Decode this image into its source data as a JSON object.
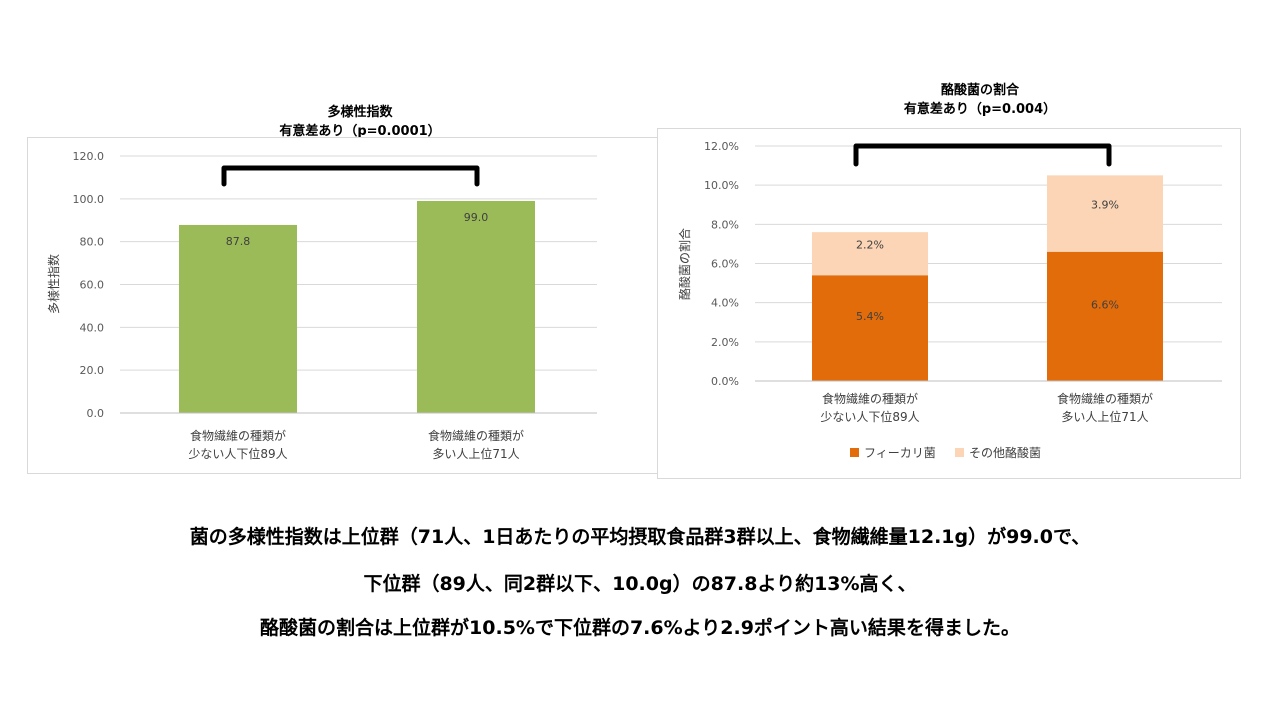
{
  "chart_data": [
    {
      "type": "bar",
      "title": "多様性指数",
      "subtitle": "有意差あり（p=0.0001）",
      "ylabel": "多様性指数",
      "xlabel": "",
      "ylim": [
        0,
        120
      ],
      "yticks": [
        "0.0",
        "20.0",
        "40.0",
        "60.0",
        "80.0",
        "100.0",
        "120.0"
      ],
      "categories": [
        [
          "食物繊維の種類が",
          "少ない人下位89人"
        ],
        [
          "食物繊維の種類が",
          "多い人上位71人"
        ]
      ],
      "series": [
        {
          "values": [
            87.8,
            99.0
          ],
          "labels": [
            "87.8",
            "99.0"
          ],
          "color": "#9bbb59"
        }
      ],
      "grid": true,
      "legend": "none",
      "annotation": "significance bracket between the two bars"
    },
    {
      "type": "bar",
      "stacked": true,
      "title": "酪酸菌の割合",
      "subtitle": "有意差あり（p=0.004）",
      "ylabel": "酪酸菌の割合",
      "xlabel": "",
      "ylim": [
        0,
        12
      ],
      "yticks": [
        "0.0%",
        "2.0%",
        "4.0%",
        "6.0%",
        "8.0%",
        "10.0%",
        "12.0%"
      ],
      "categories": [
        [
          "食物繊維の種類が",
          "少ない人下位89人"
        ],
        [
          "食物繊維の種類が",
          "多い人上位71人"
        ]
      ],
      "series": [
        {
          "name": "フィーカリ菌",
          "values": [
            5.4,
            6.6
          ],
          "labels": [
            "5.4%",
            "6.6%"
          ],
          "color": "#e36c0a"
        },
        {
          "name": "その他酪酸菌",
          "values": [
            2.2,
            3.9
          ],
          "labels": [
            "2.2%",
            "3.9%"
          ],
          "color": "#fbd5b5"
        }
      ],
      "grid": true,
      "legend": "bottom-left",
      "annotation": "significance bracket between the two bars"
    }
  ],
  "captions": [
    "菌の多様性指数は上位群（71人、1日あたりの平均摂取食品群3群以上、食物繊維量12.1g）が99.0で、",
    "下位群（89人、同2群以下、10.0g）の87.8より約13%高く、",
    "酪酸菌の割合は上位群が10.5%で下位群の7.6%より2.9ポイント高い結果を得ました。"
  ]
}
